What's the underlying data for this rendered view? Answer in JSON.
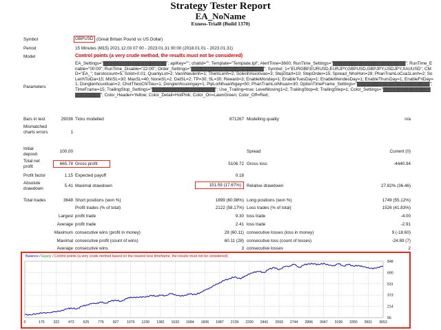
{
  "report": {
    "title": "Strategy Tester Report",
    "ea_name": "EA_NoName",
    "account": "Exness-Trial8 (Build 1370)"
  },
  "info": {
    "symbol_label": "Symbol",
    "symbol_code": "GBPUSD",
    "symbol_desc": "(Great Britain Pound vs US Dollar)",
    "period_label": "Period",
    "period_value": "15 Minutes (M15) 2021.12.03 07:00 - 2023.01.31 00:00 (2018.01.01 - 2023.01.31)",
    "model_label": "Model",
    "model_value": "Control points (a very crude method, the results must not be considered)",
    "params_label": "Parameters",
    "params_value": "EA_Settings=\"▓▓▓▓▓▓▓▓▓▓▓▓▓▓▓▓▓▓▓▓\"; apiKey=\"\"; chatId=\"\"; Template=\"Template.tpl\"; AlertTime=3600; RunTime_Settings=\"▓▓▓▓▓▓▓▓▓▓▓▓▓▓▓▓▓▓▓▓▓▓▓\"; RunTime_Enable=\"00:00\"; RunTime_Disable=\"22:00\"; Order_Settings=\"▓▓▓▓▓▓▓▓▓▓▓▓▓▓▓▓▓▓▓▓▓▓▓\"; Symbol_1=\"EURGBP,EURUSD,EURJPY,GBPUSD,GBPJPY,USDJPY,XAUUSD\"; CMD=\"EA_\"; barstocount=5; Solot=0.01; QuanlyLot=2; VaonNeulenh=1; ThemLenh=2; Solenhmuonvao=3; StepStart=10; StepOrder=15; Spread_NhoHon=28; PhanTramLoCua1Lenh=2; SoLenhToiDa=15; MinSL=30; MaxSL=40; NoneSL=2; DatSL=2; TP=30; SL=30; Reward=3; EnableMonday=1; EnableTuesDay=1; EnableWendesDay=1; EnableThursDay=1; EnableFriDay=1; Donglenhcuoituan=2; ChotTheoChiTieu=1; Donglenhcuoingay=1; PipLoiNhuanNgay=50; PhanTramLoiNhuan=30; OptionTimeFrame_Settings=\"▓▓▓▓▓▓▓▓▓▓▓▓▓▓▓▓▓▓▓▓▓▓▓\"; TimeFrame=15; TrailingStop_Settings=\"▓▓▓▓▓▓▓▓▓▓▓▓▓▓▓▓▓▓▓▓\"; Use_Trailing=true; LevelMoving1=2; TrailingStop=8; TrailingStep=1; Color_Settings=\"▓▓▓▓▓▓▓▓▓▓▓▓▓▓▓▓▓▓▓▓▓▓▓\"; Color_Header=Yellow; Color_Detail=HotPink; Color_On=LawnGreen; Color_Off=Red;"
  },
  "stats": {
    "bars_label": "Bars in test",
    "bars_value": "29036",
    "ticks_label": "Ticks modelled",
    "ticks_value": "871267",
    "quality_label": "Modelling quality",
    "quality_value": "n/a",
    "mismatched_label": "Mismatched charts errors",
    "mismatched_value": "1",
    "deposit_label": "Initial deposit",
    "deposit_value": "100.00",
    "spread_label": "Spread",
    "spread_value": "Current (0)",
    "netprofit_label": "Total net profit",
    "netprofit_value": "665.78",
    "grossprofit_label": "Gross profit",
    "grossprofit_value": "5106.72",
    "grossloss_label": "Gross loss",
    "grossloss_value": "-4440.94",
    "pf_label": "Profit factor",
    "pf_value": "1.15",
    "ep_label": "Expected payoff",
    "ep_value": "0.18",
    "absdd_label": "Absolute drawdown",
    "absdd_value": "5.41",
    "maxdd_label": "Maximal drawdown",
    "maxdd_value": "151.59 (17.67%)",
    "reldd_label": "Relative drawdown",
    "reldd_value": "27.82% (36.46)",
    "trades_label": "Total trades",
    "trades_value": "3648",
    "short_label": "Short positions (won %)",
    "short_value": "1899 (60.98%)",
    "long_label": "Long positions (won %)",
    "long_value": "1749 (55.12%)",
    "profit_trades_label": "Profit trades (% of total)",
    "profit_trades_value": "2122 (58.17%)",
    "loss_trades_label": "Loss trades (% of total)",
    "loss_trades_value": "1526 (41.83%)",
    "largest_label": "Largest",
    "largest_profit_label": "profit trade",
    "largest_profit_value": "9.30",
    "largest_loss_label": "loss trade",
    "largest_loss_value": "-4.00",
    "average_label": "Average",
    "average_profit_label": "profit trade",
    "average_profit_value": "2.41",
    "average_loss_label": "loss trade",
    "average_loss_value": "-2.91",
    "maximum_label": "Maximum",
    "max_wins_label": "consecutive wins (profit in money)",
    "max_wins_value": "28 (60.11)",
    "max_losses_label": "consecutive losses (loss in money)",
    "max_losses_value": "9 (-18.60)",
    "maximal_label": "Maximal",
    "maxl_wins_label": "consecutive profit (count of wins)",
    "maxl_wins_value": "60.11 (28)",
    "maxl_losses_label": "consecutive loss (count of losses)",
    "maxl_losses_value": "-24.89 (7)",
    "avg_cons_label": "Average",
    "avg_wins_label": "consecutive wins",
    "avg_wins_value": "3",
    "avg_losses_label": "consecutive losses",
    "avg_losses_value": "2"
  },
  "chart_title": {
    "balance": "Balance",
    "sep": " / ",
    "equity": "Equity",
    "note": " / Control points (a very crude method based on the nearest less timeframe, the results must not be considered)"
  },
  "chart_data": {
    "type": "line",
    "series": [
      {
        "name": "Balance",
        "color": "#1a1aa8",
        "x": [
          0,
          60,
          120,
          170,
          230,
          322,
          380,
          440,
          473,
          530,
          580,
          625,
          680,
          740,
          776,
          830,
          880,
          927,
          980,
          1040,
          1079,
          1130,
          1180,
          1230,
          1290,
          1340,
          1382,
          1430,
          1490,
          1533,
          1590,
          1640,
          1684,
          1740,
          1790,
          1836,
          1880,
          1940,
          1987,
          2040,
          2090,
          2139,
          2200,
          2240,
          2290,
          2340,
          2390,
          2441,
          2490,
          2540,
          2593,
          2650,
          2700,
          2744,
          2800,
          2850,
          2896,
          2950,
          3000,
          3047,
          3100,
          3150,
          3199,
          3250,
          3300,
          3350,
          3400,
          3440,
          3501,
          3550,
          3600,
          3653
        ],
        "y": [
          100,
          95,
          112,
          118,
          128,
          136,
          160,
          182,
          190,
          178,
          215,
          232,
          250,
          262,
          270,
          260,
          292,
          300,
          286,
          322,
          346,
          334,
          351,
          342,
          370,
          355,
          372,
          365,
          392,
          380,
          355,
          374,
          390,
          380,
          408,
          440,
          470,
          512,
          548,
          582,
          605,
          628,
          600,
          640,
          665,
          700,
          702,
          690,
          738,
          760,
          730,
          772,
          781,
          805,
          762,
          798,
          812,
          812,
          800,
          820,
          790,
          788,
          812,
          780,
          806,
          778,
          790,
          772,
          760,
          740,
          765,
          778
        ]
      }
    ],
    "y_ticks": [
      "848",
      "690",
      "531",
      "373",
      "214",
      "56"
    ],
    "x_ticks": [
      "0",
      "170",
      "322",
      "473",
      "625",
      "776",
      "927",
      "1079",
      "1230",
      "1382",
      "1533",
      "1684",
      "1836",
      "1987",
      "2139",
      "2290",
      "2441",
      "2593",
      "2744",
      "2896",
      "3047",
      "3199",
      "3350",
      "3501",
      "3653"
    ],
    "ylim": [
      56,
      848
    ],
    "xlim": [
      0,
      3653
    ],
    "grid": true
  }
}
